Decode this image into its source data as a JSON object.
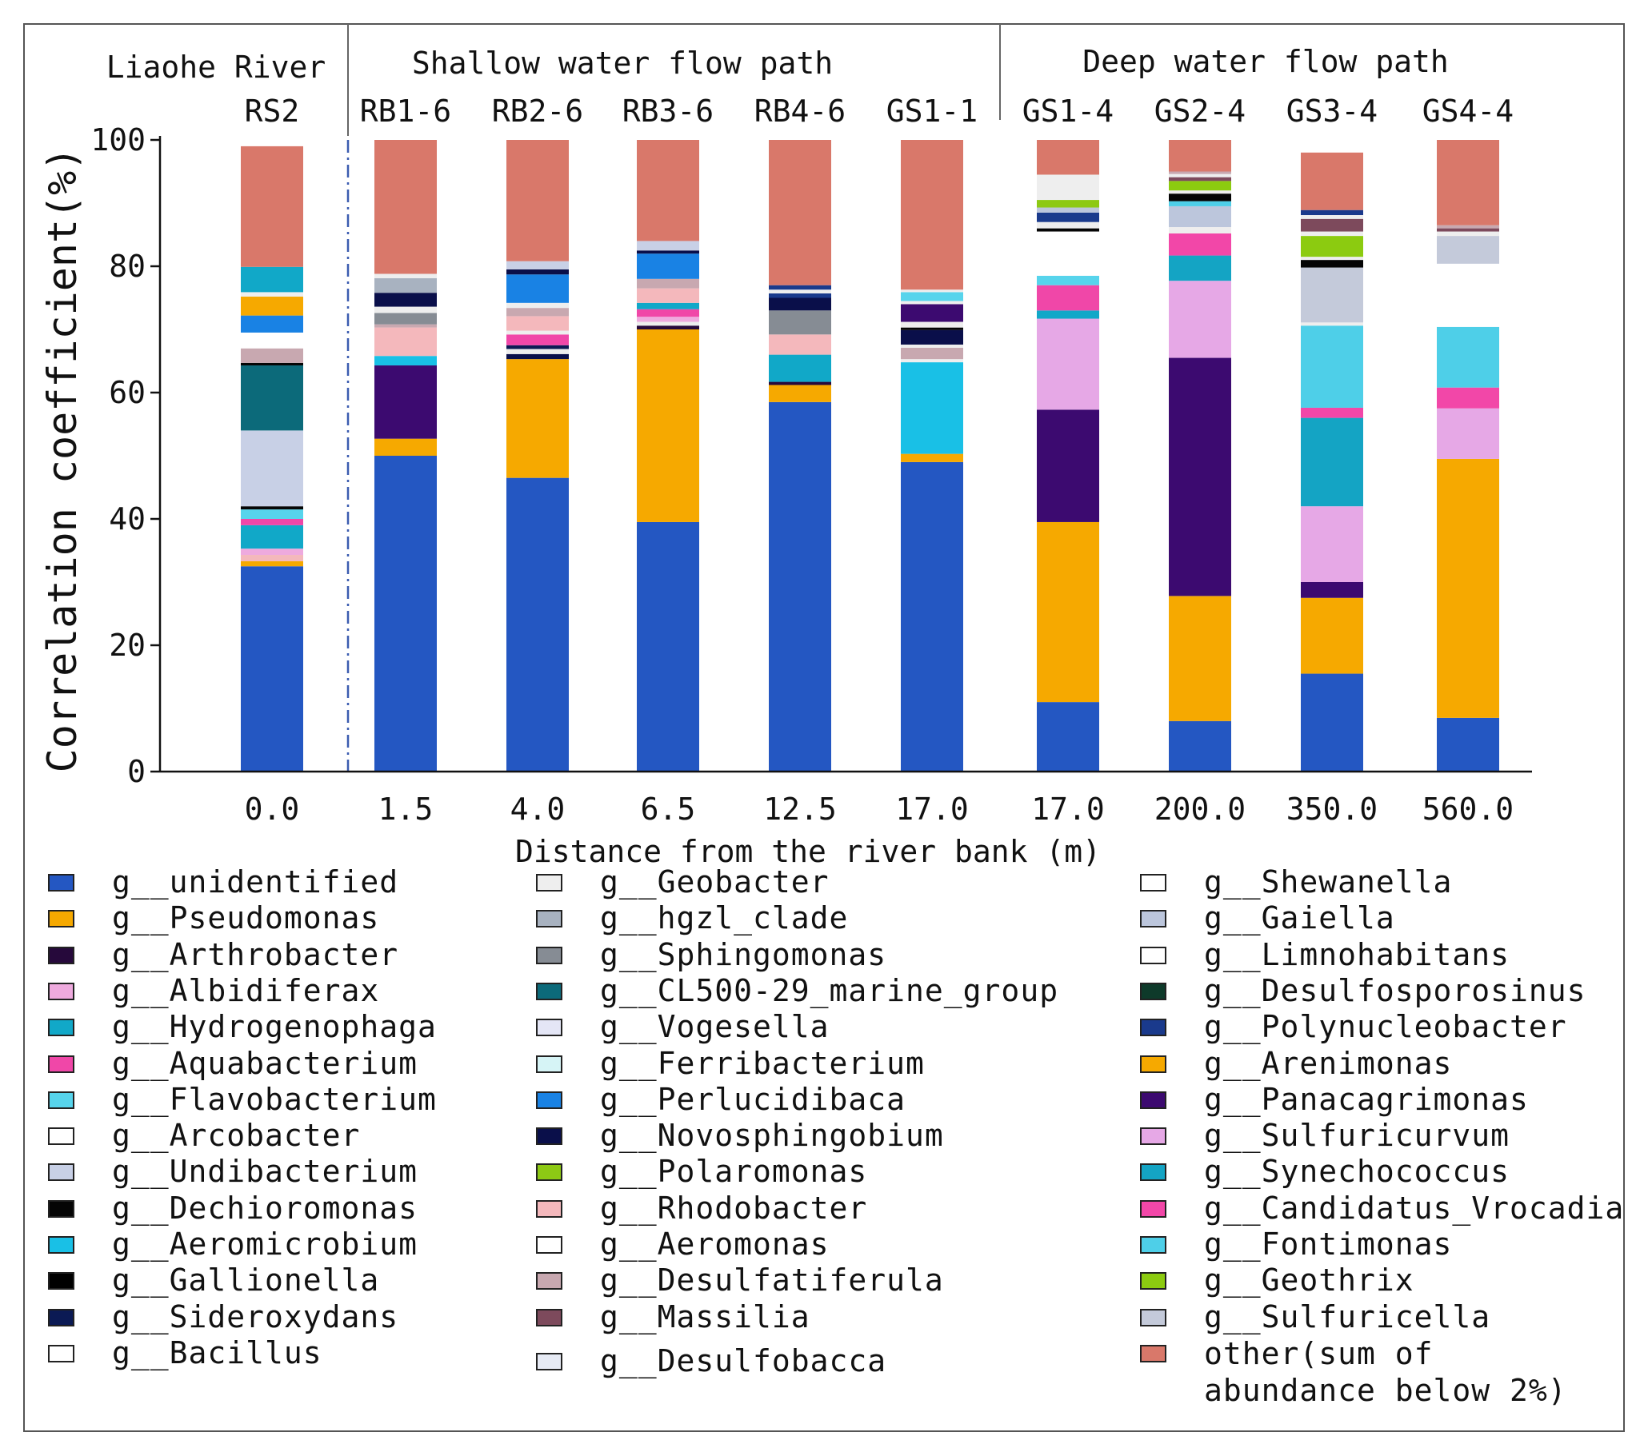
{
  "chart_data": {
    "type": "bar",
    "stacked": true,
    "ylabel": "Correlation coefficient(%)",
    "xlabel": "Distance from the river bank (m)",
    "ylim": [
      0,
      100
    ],
    "yticks": [
      0,
      20,
      40,
      60,
      80,
      100
    ],
    "groups": [
      {
        "label": "Liaohe River",
        "samples": [
          "RS2"
        ]
      },
      {
        "label": "Shallow water flow path",
        "samples": [
          "RB1-6",
          "RB2-6",
          "RB3-6",
          "RB4-6",
          "GS1-1"
        ]
      },
      {
        "label": "Deep water flow path",
        "samples": [
          "GS1-4",
          "GS2-4",
          "GS3-4",
          "GS4-4"
        ]
      }
    ],
    "categories": [
      "RS2",
      "RB1-6",
      "RB2-6",
      "RB3-6",
      "RB4-6",
      "GS1-1",
      "GS1-4",
      "GS2-4",
      "GS3-4",
      "GS4-4"
    ],
    "x_tick_labels": [
      "0.0",
      "1.5",
      "4.0",
      "6.5",
      "12.5",
      "17.0",
      "17.0",
      "200.0",
      "350.0",
      "560.0"
    ],
    "palette": {
      "unidentified": "#2457c2",
      "Pseudomonas": "#f6a900",
      "Arthrobacter": "#26093b",
      "Albidiferax": "#eeaade",
      "Hydrogenophaga": "#11a8c8",
      "Aquabacterium": "#f047a8",
      "Flavobacterium": "#57d4ec",
      "Arcobacter": "#ffffff",
      "Undibacterium": "#c8d0e6",
      "Dechloromonas": "#050505",
      "Aeromicrobium": "#19c0e6",
      "Gallionella": "#000000",
      "Sideroxydans": "#0b1a54",
      "Bacillus": "#ffffff",
      "Geobacter": "#eeeeee",
      "hgzl_clade": "#a8b2c0",
      "Sphingomonas": "#868c94",
      "CL500-29_marine_group": "#0c6a7a",
      "Vogesella": "#e4e6f6",
      "Ferribacterium": "#d6f4f6",
      "Perlucidibaca": "#1982e4",
      "Novosphingobium": "#0a0f4a",
      "Polaromonas": "#8dc914",
      "Rhodobacter": "#f4b8bc",
      "Aeromonas": "#ffffff",
      "Desulfatiferula": "#c8a8b0",
      "Massilia": "#7d4a5c",
      "Desulfobacca": "#e6eaf4",
      "Shewanella": "#ffffff",
      "Gaiella": "#bcc6dc",
      "Limnohabitans": "#ffffff",
      "Desulfosporosinus": "#0e3a2a",
      "Polynucleobacter": "#1a3a8c",
      "Arenimonas": "#f6a900",
      "Panacagrimonas": "#3c0a70",
      "Sulfuricurvum": "#e6a8e6",
      "Synechococcus": "#14a4c4",
      "Candidatus_Vrocadia": "#f247a8",
      "Fontimonas": "#4ecfe8",
      "Geothrix": "#8ccb10",
      "Sulfuricella": "#c4cada",
      "other": "#d9786a"
    },
    "stacks": [
      [
        {
          "genus": "unidentified",
          "value": 32.5
        },
        {
          "genus": "Pseudomonas",
          "value": 0.8
        },
        {
          "genus": "Rhodobacter",
          "value": 1.0
        },
        {
          "genus": "Albidiferax",
          "value": 1.0
        },
        {
          "genus": "Hydrogenophaga",
          "value": 3.7
        },
        {
          "genus": "Aquabacterium",
          "value": 1.0
        },
        {
          "genus": "Flavobacterium",
          "value": 1.5
        },
        {
          "genus": "Dechloromonas",
          "value": 0.5
        },
        {
          "genus": "Undibacterium",
          "value": 12.0
        },
        {
          "genus": "CL500-29_marine_group",
          "value": 10.3
        },
        {
          "genus": "Dechloromonas",
          "value": 0.4
        },
        {
          "genus": "Desulfatiferula",
          "value": 2.3
        },
        {
          "genus": "Arcobacter",
          "value": 2.5
        },
        {
          "genus": "Perlucidibaca",
          "value": 2.7
        },
        {
          "genus": "Pseudomonas",
          "value": 3.0
        },
        {
          "genus": "Geobacter",
          "value": 0.7
        },
        {
          "genus": "Hydrogenophaga",
          "value": 4.0
        },
        {
          "genus": "other",
          "value": 19.1
        }
      ],
      [
        {
          "genus": "unidentified",
          "value": 50.0
        },
        {
          "genus": "Pseudomonas",
          "value": 2.7
        },
        {
          "genus": "Panacagrimonas",
          "value": 11.6
        },
        {
          "genus": "Aeromicrobium",
          "value": 1.5
        },
        {
          "genus": "Rhodobacter",
          "value": 4.5
        },
        {
          "genus": "Desulfatiferula",
          "value": 0.5
        },
        {
          "genus": "Sphingomonas",
          "value": 1.8
        },
        {
          "genus": "Geobacter",
          "value": 1.0
        },
        {
          "genus": "Novosphingobium",
          "value": 2.2
        },
        {
          "genus": "hgzl_clade",
          "value": 2.3
        },
        {
          "genus": "Geobacter",
          "value": 0.7
        },
        {
          "genus": "other",
          "value": 21.2
        }
      ],
      [
        {
          "genus": "unidentified",
          "value": 46.5
        },
        {
          "genus": "Pseudomonas",
          "value": 18.8
        },
        {
          "genus": "Novosphingobium",
          "value": 0.8
        },
        {
          "genus": "Geobacter",
          "value": 0.8
        },
        {
          "genus": "Sideroxydans",
          "value": 0.6
        },
        {
          "genus": "Aquabacterium",
          "value": 1.7
        },
        {
          "genus": "Geobacter",
          "value": 0.6
        },
        {
          "genus": "Rhodobacter",
          "value": 2.3
        },
        {
          "genus": "Desulfatiferula",
          "value": 1.3
        },
        {
          "genus": "Geobacter",
          "value": 0.8
        },
        {
          "genus": "Perlucidibaca",
          "value": 4.5
        },
        {
          "genus": "Novosphingobium",
          "value": 0.8
        },
        {
          "genus": "Undibacterium",
          "value": 1.3
        },
        {
          "genus": "other",
          "value": 19.2
        }
      ],
      [
        {
          "genus": "unidentified",
          "value": 39.5
        },
        {
          "genus": "Pseudomonas",
          "value": 30.5
        },
        {
          "genus": "Arthrobacter",
          "value": 0.6
        },
        {
          "genus": "Geobacter",
          "value": 0.6
        },
        {
          "genus": "Albidiferax",
          "value": 0.8
        },
        {
          "genus": "Aquabacterium",
          "value": 1.2
        },
        {
          "genus": "Hydrogenophaga",
          "value": 1.0
        },
        {
          "genus": "Rhodobacter",
          "value": 2.3
        },
        {
          "genus": "Desulfatiferula",
          "value": 1.5
        },
        {
          "genus": "Perlucidibaca",
          "value": 4.0
        },
        {
          "genus": "Novosphingobium",
          "value": 0.5
        },
        {
          "genus": "Undibacterium",
          "value": 1.5
        },
        {
          "genus": "other",
          "value": 16.0
        }
      ],
      [
        {
          "genus": "unidentified",
          "value": 58.5
        },
        {
          "genus": "Pseudomonas",
          "value": 2.7
        },
        {
          "genus": "Arthrobacter",
          "value": 0.5
        },
        {
          "genus": "Hydrogenophaga",
          "value": 4.3
        },
        {
          "genus": "Rhodobacter",
          "value": 3.2
        },
        {
          "genus": "Sphingomonas",
          "value": 3.8
        },
        {
          "genus": "Novosphingobium",
          "value": 2.0
        },
        {
          "genus": "Polynucleobacter",
          "value": 0.7
        },
        {
          "genus": "Geobacter",
          "value": 0.6
        },
        {
          "genus": "Polynucleobacter",
          "value": 0.7
        },
        {
          "genus": "other",
          "value": 23.0
        }
      ],
      [
        {
          "genus": "unidentified",
          "value": 49.0
        },
        {
          "genus": "Pseudomonas",
          "value": 1.3
        },
        {
          "genus": "Aeromicrobium",
          "value": 14.5
        },
        {
          "genus": "Geobacter",
          "value": 0.5
        },
        {
          "genus": "Desulfatiferula",
          "value": 1.8
        },
        {
          "genus": "Geobacter",
          "value": 0.5
        },
        {
          "genus": "Novosphingobium",
          "value": 2.3
        },
        {
          "genus": "Dechloromonas",
          "value": 0.4
        },
        {
          "genus": "Geobacter",
          "value": 0.9
        },
        {
          "genus": "Panacagrimonas",
          "value": 2.8
        },
        {
          "genus": "Geobacter",
          "value": 0.5
        },
        {
          "genus": "Flavobacterium",
          "value": 1.4
        },
        {
          "genus": "Geobacter",
          "value": 0.4
        },
        {
          "genus": "other",
          "value": 23.7
        }
      ],
      [
        {
          "genus": "unidentified",
          "value": 11.0
        },
        {
          "genus": "Pseudomonas",
          "value": 28.5
        },
        {
          "genus": "Panacagrimonas",
          "value": 17.8
        },
        {
          "genus": "Sulfuricurvum",
          "value": 14.4
        },
        {
          "genus": "Hydrogenophaga",
          "value": 1.3
        },
        {
          "genus": "Aquabacterium",
          "value": 4.0
        },
        {
          "genus": "Flavobacterium",
          "value": 1.5
        },
        {
          "genus": "Shewanella",
          "value": 7.0
        },
        {
          "genus": "Dechloromonas",
          "value": 0.5
        },
        {
          "genus": "Geobacter",
          "value": 1.0
        },
        {
          "genus": "Polynucleobacter",
          "value": 1.5
        },
        {
          "genus": "Gaiella",
          "value": 0.8
        },
        {
          "genus": "Polaromonas",
          "value": 1.2
        },
        {
          "genus": "Geobacter",
          "value": 4.0
        },
        {
          "genus": "other",
          "value": 5.5
        }
      ],
      [
        {
          "genus": "unidentified",
          "value": 8.0
        },
        {
          "genus": "Arenimonas",
          "value": 19.8
        },
        {
          "genus": "Panacagrimonas",
          "value": 37.7
        },
        {
          "genus": "Sulfuricurvum",
          "value": 12.2
        },
        {
          "genus": "Synechococcus",
          "value": 4.0
        },
        {
          "genus": "Candidatus_Vrocadia",
          "value": 3.5
        },
        {
          "genus": "Geobacter",
          "value": 1.0
        },
        {
          "genus": "Gaiella",
          "value": 3.3
        },
        {
          "genus": "Fontimonas",
          "value": 0.8
        },
        {
          "genus": "Dechloromonas",
          "value": 1.2
        },
        {
          "genus": "Geobacter",
          "value": 0.5
        },
        {
          "genus": "Geothrix",
          "value": 1.5
        },
        {
          "genus": "Massilia",
          "value": 0.6
        },
        {
          "genus": "Geobacter",
          "value": 0.5
        },
        {
          "genus": "Desulfatiferula",
          "value": 0.4
        },
        {
          "genus": "other",
          "value": 5.0
        }
      ],
      [
        {
          "genus": "unidentified",
          "value": 15.5
        },
        {
          "genus": "Arenimonas",
          "value": 12.0
        },
        {
          "genus": "Panacagrimonas",
          "value": 2.5
        },
        {
          "genus": "Sulfuricurvum",
          "value": 12.0
        },
        {
          "genus": "Synechococcus",
          "value": 14.0
        },
        {
          "genus": "Candidatus_Vrocadia",
          "value": 1.6
        },
        {
          "genus": "Fontimonas",
          "value": 13.0
        },
        {
          "genus": "Geobacter",
          "value": 0.5
        },
        {
          "genus": "Sulfuricella",
          "value": 8.7
        },
        {
          "genus": "Dechloromonas",
          "value": 1.2
        },
        {
          "genus": "Geobacter",
          "value": 0.5
        },
        {
          "genus": "Geothrix",
          "value": 3.3
        },
        {
          "genus": "Geobacter",
          "value": 0.7
        },
        {
          "genus": "Massilia",
          "value": 2.0
        },
        {
          "genus": "Geobacter",
          "value": 0.6
        },
        {
          "genus": "Polynucleobacter",
          "value": 0.8
        },
        {
          "genus": "other",
          "value": 9.1
        }
      ],
      [
        {
          "genus": "unidentified",
          "value": 8.5
        },
        {
          "genus": "Arenimonas",
          "value": 41.0
        },
        {
          "genus": "Sulfuricurvum",
          "value": 8.0
        },
        {
          "genus": "Candidatus_Vrocadia",
          "value": 3.3
        },
        {
          "genus": "Fontimonas",
          "value": 9.6
        },
        {
          "genus": "Limnohabitans",
          "value": 10.0
        },
        {
          "genus": "Sulfuricella",
          "value": 4.4
        },
        {
          "genus": "Geobacter",
          "value": 0.7
        },
        {
          "genus": "Massilia",
          "value": 0.5
        },
        {
          "genus": "Desulfatiferula",
          "value": 0.5
        },
        {
          "genus": "other",
          "value": 13.5
        }
      ]
    ],
    "legend": [
      [
        {
          "label": "g__unidentified",
          "key": "unidentified"
        },
        {
          "label": "g__Pseudomonas",
          "key": "Pseudomonas"
        },
        {
          "label": "g__Arthrobacter",
          "key": "Arthrobacter"
        },
        {
          "label": "g__Albidiferax",
          "key": "Albidiferax"
        },
        {
          "label": "g__Hydrogenophaga",
          "key": "Hydrogenophaga"
        },
        {
          "label": "g__Aquabacterium",
          "key": "Aquabacterium"
        },
        {
          "label": "g__Flavobacterium",
          "key": "Flavobacterium"
        },
        {
          "label": "g__Arcobacter",
          "key": "Arcobacter"
        },
        {
          "label": "g__Undibacterium",
          "key": "Undibacterium"
        },
        {
          "label": "g__Dechioromonas",
          "key": "Dechloromonas"
        },
        {
          "label": "g__Aeromicrobium",
          "key": "Aeromicrobium"
        },
        {
          "label": "g__Gallionella",
          "key": "Gallionella"
        },
        {
          "label": "g__Sideroxydans",
          "key": "Sideroxydans"
        },
        {
          "label": "g__Bacillus",
          "key": "Bacillus"
        }
      ],
      [
        {
          "label": "g__Geobacter",
          "key": "Geobacter"
        },
        {
          "label": "g__hgzl_clade",
          "key": "hgzl_clade"
        },
        {
          "label": "g__Sphingomonas",
          "key": "Sphingomonas"
        },
        {
          "label": "g__CL500-29_marine_group",
          "key": "CL500-29_marine_group"
        },
        {
          "label": "g__Vogesella",
          "key": "Vogesella"
        },
        {
          "label": "g__Ferribacterium",
          "key": "Ferribacterium"
        },
        {
          "label": "g__Perlucidibaca",
          "key": "Perlucidibaca"
        },
        {
          "label": "g__Novosphingobium",
          "key": "Novosphingobium"
        },
        {
          "label": "g__Polaromonas",
          "key": "Polaromonas"
        },
        {
          "label": "g__Rhodobacter",
          "key": "Rhodobacter"
        },
        {
          "label": "g__Aeromonas",
          "key": "Aeromonas"
        },
        {
          "label": "g__Desulfatiferula",
          "key": "Desulfatiferula"
        },
        {
          "label": "g__Massilia",
          "key": "Massilia"
        },
        {
          "label": "g__Desulfobacca",
          "key": "Desulfobacca"
        }
      ],
      [
        {
          "label": "g__Shewanella",
          "key": "Shewanella"
        },
        {
          "label": "g__Gaiella",
          "key": "Gaiella"
        },
        {
          "label": "g__Limnohabitans",
          "key": "Limnohabitans"
        },
        {
          "label": "g__Desulfosporosinus",
          "key": "Desulfosporosinus"
        },
        {
          "label": "g__Polynucleobacter",
          "key": "Polynucleobacter"
        },
        {
          "label": "g__Arenimonas",
          "key": "Arenimonas"
        },
        {
          "label": "g__Panacagrimonas",
          "key": "Panacagrimonas"
        },
        {
          "label": "g__Sulfuricurvum",
          "key": "Sulfuricurvum"
        },
        {
          "label": "g__Synechococcus",
          "key": "Synechococcus"
        },
        {
          "label": "g__Candidatus_Vrocadia",
          "key": "Candidatus_Vrocadia"
        },
        {
          "label": "g__Fontimonas",
          "key": "Fontimonas"
        },
        {
          "label": "g__Geothrix",
          "key": "Geothrix"
        },
        {
          "label": "g__Sulfuricella",
          "key": "Sulfuricella"
        },
        {
          "label": "other(sum of abundance below 2%)",
          "key": "other"
        }
      ]
    ]
  }
}
